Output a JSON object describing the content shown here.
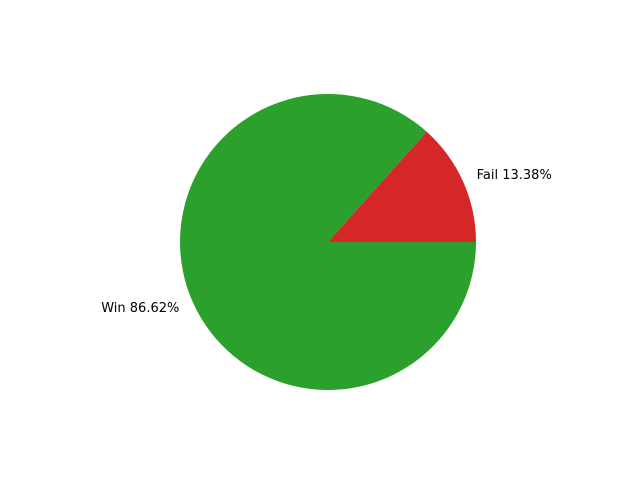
{
  "chart_data": {
    "type": "pie",
    "slices": [
      {
        "label": "Win 86.62%",
        "value": 86.62,
        "color": "#2ca02c"
      },
      {
        "label": "Fail 13.38%",
        "value": 13.38,
        "color": "#d62728"
      }
    ],
    "legend": "none",
    "grid": false
  }
}
